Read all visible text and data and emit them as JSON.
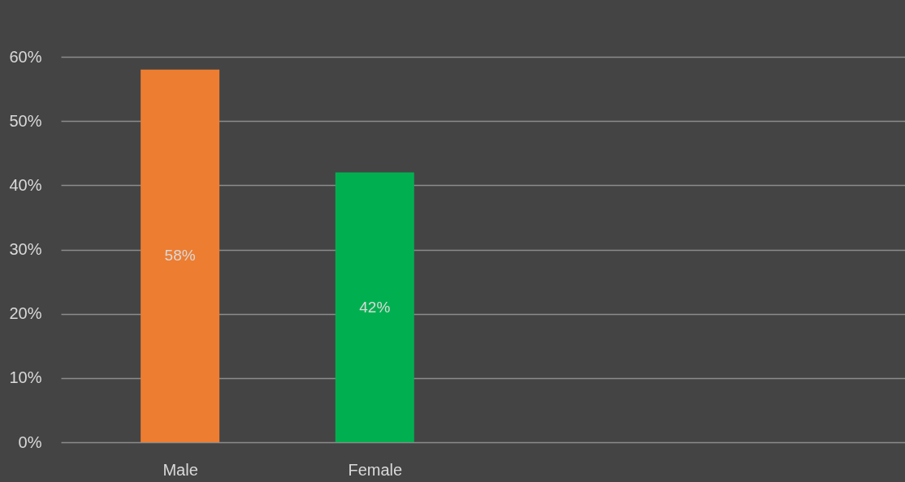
{
  "chart_data": {
    "type": "bar",
    "categories": [
      "Male",
      "Female"
    ],
    "values": [
      58,
      42
    ],
    "colors": [
      "#ed7d31",
      "#00b050"
    ],
    "value_labels": [
      "58%",
      "42%"
    ],
    "ylim": [
      0,
      60
    ],
    "yticks": [
      {
        "value": 0,
        "label": "0%"
      },
      {
        "value": 10,
        "label": "10%"
      },
      {
        "value": 20,
        "label": "20%"
      },
      {
        "value": 30,
        "label": "30%"
      },
      {
        "value": 40,
        "label": "40%"
      },
      {
        "value": 50,
        "label": "50%"
      },
      {
        "value": 60,
        "label": "60%"
      }
    ],
    "grid": "y"
  }
}
